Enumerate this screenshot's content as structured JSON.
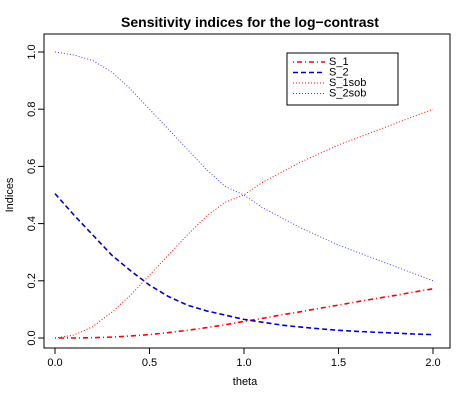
{
  "chart_data": {
    "type": "line",
    "title": "Sensitivity indices for the log−contrast",
    "xlabel": "theta",
    "ylabel": "Indices",
    "xlim": [
      0.0,
      2.0
    ],
    "ylim": [
      0.0,
      1.0
    ],
    "xticks": [
      0.0,
      0.5,
      1.0,
      1.5,
      2.0
    ],
    "xtick_labels": [
      "0.0",
      "0.5",
      "1.0",
      "1.5",
      "2.0"
    ],
    "yticks": [
      0.0,
      0.2,
      0.4,
      0.6,
      0.8,
      1.0
    ],
    "ytick_labels": [
      "0.0",
      "0.2",
      "0.4",
      "0.6",
      "0.8",
      "1.0"
    ],
    "grid": false,
    "legend_position": "top-right",
    "x": [
      0.0,
      0.1,
      0.2,
      0.3,
      0.4,
      0.5,
      0.6,
      0.7,
      0.8,
      0.9,
      1.0,
      1.1,
      1.2,
      1.3,
      1.4,
      1.5,
      1.6,
      1.7,
      1.8,
      1.9,
      2.0
    ],
    "series": [
      {
        "name": "S_1",
        "color": "#ff0000",
        "dash": "dotdash",
        "values": [
          0.0,
          0.0,
          0.001,
          0.003,
          0.007,
          0.012,
          0.019,
          0.027,
          0.036,
          0.046,
          0.058,
          0.069,
          0.081,
          0.092,
          0.104,
          0.115,
          0.127,
          0.138,
          0.149,
          0.161,
          0.172
        ]
      },
      {
        "name": "S_2",
        "color": "#0000cc",
        "dash": "dashed",
        "values": [
          0.505,
          0.43,
          0.36,
          0.29,
          0.235,
          0.185,
          0.145,
          0.115,
          0.095,
          0.08,
          0.065,
          0.055,
          0.045,
          0.038,
          0.032,
          0.027,
          0.023,
          0.02,
          0.017,
          0.014,
          0.012
        ]
      },
      {
        "name": "S_1sob",
        "color": "#ff0000",
        "dash": "dotted",
        "values": [
          0.0,
          0.01,
          0.04,
          0.09,
          0.15,
          0.22,
          0.29,
          0.36,
          0.425,
          0.475,
          0.5,
          0.545,
          0.58,
          0.615,
          0.645,
          0.675,
          0.7,
          0.725,
          0.75,
          0.775,
          0.8
        ]
      },
      {
        "name": "S_2sob",
        "color": "#4040ff",
        "dash": "dotted",
        "values": [
          1.0,
          0.99,
          0.97,
          0.93,
          0.87,
          0.8,
          0.73,
          0.66,
          0.59,
          0.53,
          0.5,
          0.455,
          0.42,
          0.385,
          0.355,
          0.325,
          0.3,
          0.275,
          0.25,
          0.225,
          0.2
        ]
      }
    ]
  }
}
